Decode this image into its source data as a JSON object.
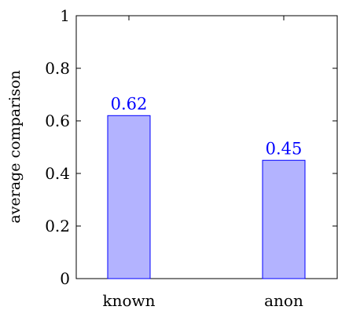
{
  "chart_data": {
    "type": "bar",
    "categories": [
      "known",
      "anon"
    ],
    "values": [
      0.62,
      0.45
    ],
    "value_labels": [
      "0.62",
      "0.45"
    ],
    "title": "",
    "xlabel": "",
    "ylabel": "average comparison",
    "ylim": [
      0,
      1
    ],
    "yticks": [
      0,
      0.2,
      0.4,
      0.6,
      0.8,
      1
    ],
    "ytick_labels": [
      "0",
      "0.2",
      "0.4",
      "0.6",
      "0.8",
      "1"
    ],
    "grid": false,
    "bar_fill": "#b3b3ff",
    "bar_stroke": "#0000ff",
    "label_color": "#0000ff"
  }
}
